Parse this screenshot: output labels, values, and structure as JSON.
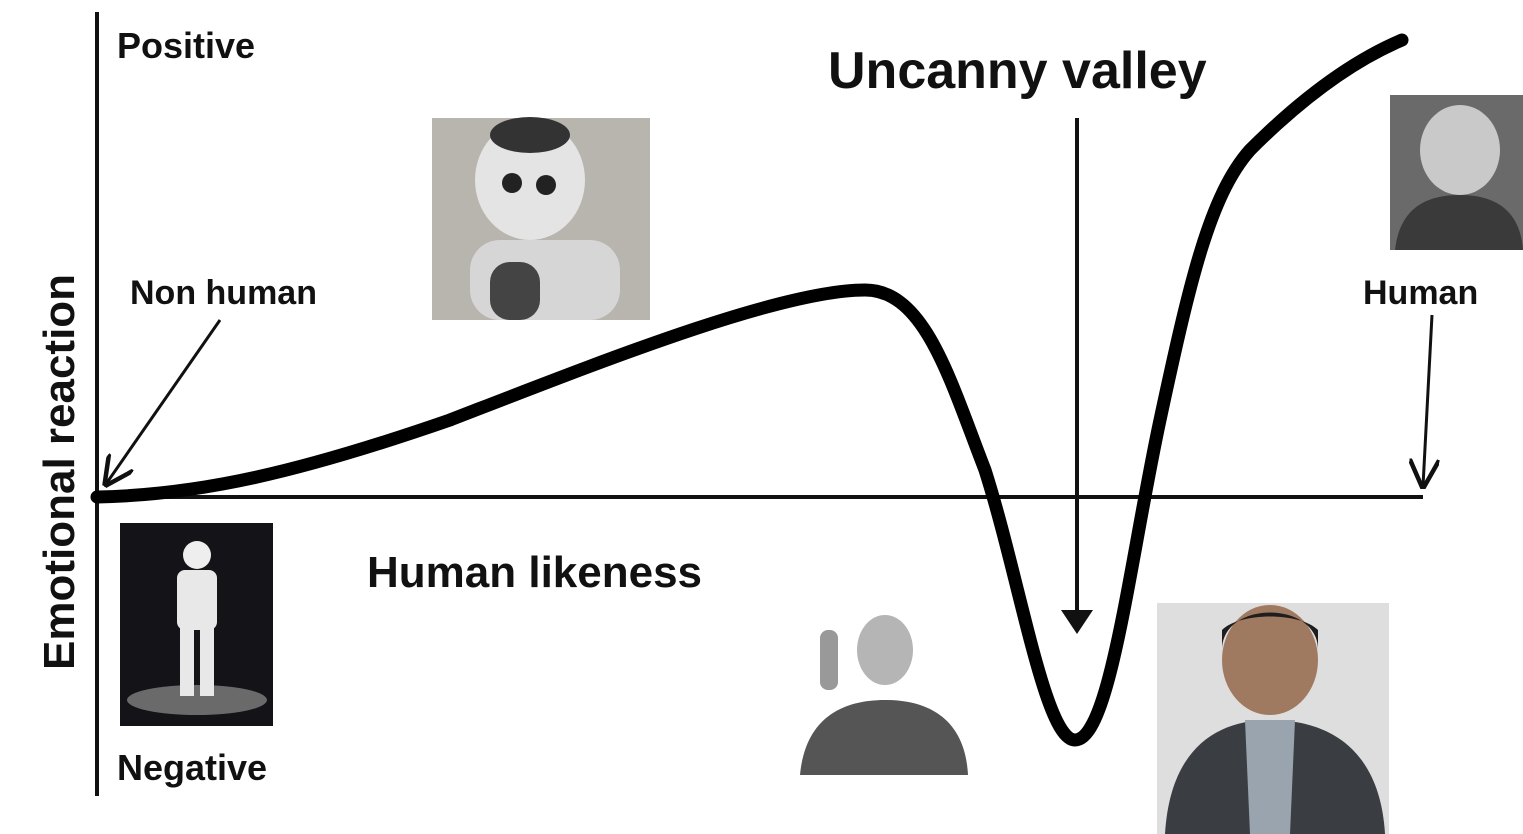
{
  "title": "Uncanny valley",
  "y_axis": {
    "label": "Emotional reaction",
    "top": "Positive",
    "bottom": "Negative"
  },
  "x_axis": {
    "label": "Human likeness"
  },
  "annotations": {
    "start": "Non human",
    "end": "Human"
  }
}
